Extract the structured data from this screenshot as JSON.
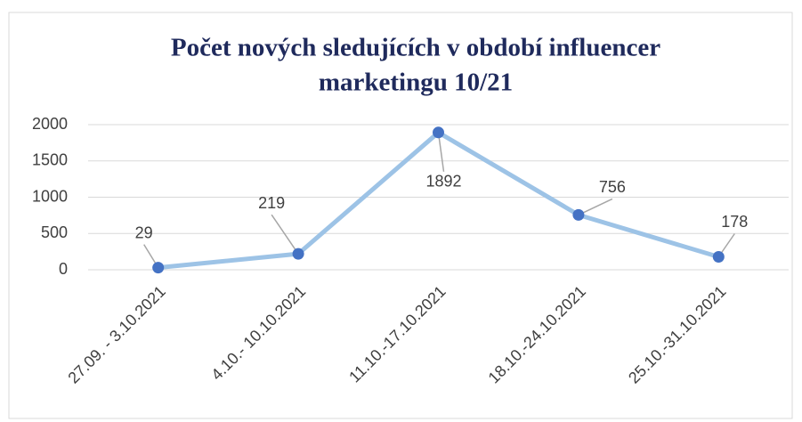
{
  "chart_data": {
    "type": "line",
    "title_lines": [
      "Počet nových sledujících v období influencer",
      "marketingu 10/21"
    ],
    "categories": [
      "27.09. - 3.10.2021",
      "4.10.- 10.10.2021",
      "11.10.-17.10.2021",
      "18.10.-24.10.2021",
      "25.10.-31.10.2021"
    ],
    "series": [
      {
        "name": "Počet nových sledujících",
        "color": "#9dc3e6",
        "marker_color": "#4472c4",
        "values": [
          29,
          219,
          1892,
          756,
          178
        ]
      }
    ],
    "ylim": [
      0,
      2000
    ],
    "yticks": [
      0,
      500,
      1000,
      1500,
      2000
    ],
    "grid": true,
    "data_labels": true
  }
}
